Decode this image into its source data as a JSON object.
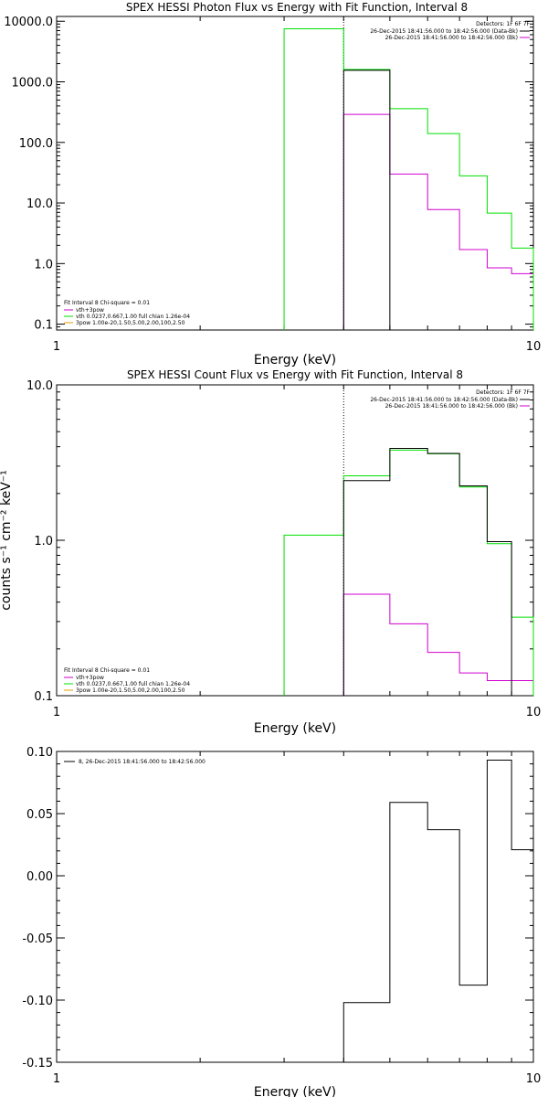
{
  "colors": {
    "black": "#000000",
    "green": "#00e000",
    "magenta": "#d000d0",
    "orange": "#e0a000",
    "background": "#ffffff"
  },
  "chart_data": [
    {
      "type": "line",
      "title": "SPEX HESSI Photon Flux vs Energy with Fit Function, Interval 8",
      "xlabel": "Energy (keV)",
      "ylabel": "",
      "xscale": "log",
      "yscale": "log",
      "xlim": [
        1,
        10
      ],
      "ylim": [
        0.08,
        12000
      ],
      "x_ticks": [
        1,
        10
      ],
      "x_tick_labels": [
        "1",
        "10"
      ],
      "y_ticks": [
        0.1,
        1,
        10,
        100,
        1000,
        10000
      ],
      "y_tick_labels": [
        "0.1",
        "1.0",
        "10.0",
        "100.0",
        "1000.0",
        "10000.0"
      ],
      "vline_x": 4.0,
      "bin_edges": [
        3.0,
        4.0,
        5.0,
        6.0,
        7.0,
        8.0,
        9.0,
        10.0
      ],
      "series": [
        {
          "name": "vth+3pow",
          "color": "magenta",
          "bin_edges": [
            4.0,
            5.0,
            6.0,
            7.0,
            8.0,
            9.0,
            10.0
          ],
          "values": [
            290,
            30,
            7.8,
            1.7,
            0.85,
            0.68
          ]
        },
        {
          "name": "vth 0.0237,0.667,1.00  full chian 1.26e-04",
          "color": "green",
          "bin_edges": [
            3.0,
            4.0,
            5.0,
            6.0,
            7.0,
            8.0,
            9.0,
            10.0
          ],
          "values": [
            7500,
            1600,
            360,
            140,
            28,
            6.8,
            1.8
          ]
        },
        {
          "name": "",
          "color": "black",
          "bin_edges": [
            4.0,
            5.0
          ],
          "values": [
            1550
          ]
        }
      ],
      "legend_header": "Detectors: 1F 6F 7F",
      "legend_time": [
        {
          "text": "26-Dec-2015 18:41:56.000 to 18:42:56.000 (Data-Bk)",
          "color": "black"
        },
        {
          "text": "26-Dec-2015 18:41:56.000 to 18:42:56.000 (Bk)",
          "color": "magenta"
        }
      ],
      "legend_fit": [
        {
          "text": "Fit Interval 8   Chi-square = 0.01",
          "color": "black"
        },
        {
          "text": "vth+3pow",
          "color": "magenta"
        },
        {
          "text": "vth 0.0237,0.667,1.00  full chian 1.26e-04",
          "color": "green"
        },
        {
          "text": "3pow 1.00e-20,1.50,5.00,2.00,100,2.50",
          "color": "orange"
        }
      ]
    },
    {
      "type": "line",
      "title": "SPEX HESSI Count Flux vs Energy with Fit Function, Interval 8",
      "xlabel": "Energy (keV)",
      "ylabel": "counts s⁻¹ cm⁻² keV⁻¹",
      "xscale": "log",
      "yscale": "log",
      "xlim": [
        1,
        10
      ],
      "ylim": [
        0.1,
        10
      ],
      "x_ticks": [
        1,
        10
      ],
      "x_tick_labels": [
        "1",
        "10"
      ],
      "y_ticks": [
        0.1,
        1,
        10
      ],
      "y_tick_labels": [
        "0.1",
        "1.0",
        "10.0"
      ],
      "vline_x": 4.0,
      "bin_edges": [
        3.0,
        4.0,
        5.0,
        6.0,
        7.0,
        8.0,
        9.0,
        10.0
      ],
      "series": [
        {
          "name": "vth+3pow",
          "color": "magenta",
          "bin_edges": [
            4.0,
            5.0,
            6.0,
            7.0,
            8.0,
            9.0,
            10.0
          ],
          "values": [
            0.45,
            0.29,
            0.19,
            0.14,
            0.125,
            0.125
          ]
        },
        {
          "name": "vth 0.0237,0.667,1.00  full chian 1.26e-04",
          "color": "green",
          "bin_edges": [
            3.0,
            4.0,
            5.0,
            6.0,
            7.0,
            8.0,
            9.0,
            10.0
          ],
          "values": [
            1.08,
            2.6,
            3.8,
            3.6,
            2.2,
            0.95,
            0.32
          ]
        },
        {
          "name": "",
          "color": "black",
          "bin_edges": [
            4.0,
            5.0,
            6.0,
            7.0,
            8.0,
            9.0
          ],
          "values": [
            2.42,
            3.9,
            3.62,
            2.24,
            0.98
          ]
        }
      ],
      "legend_header": "Detectors: 1F 6F 7F",
      "legend_time": [
        {
          "text": "26-Dec-2015 18:41:56.000 to 18:42:56.000 (Data-Bk)",
          "color": "black"
        },
        {
          "text": "26-Dec-2015 18:41:56.000 to 18:42:56.000 (Bk)",
          "color": "magenta"
        }
      ],
      "legend_fit": [
        {
          "text": "Fit Interval 8   Chi-square = 0.01",
          "color": "black"
        },
        {
          "text": "vth+3pow",
          "color": "magenta"
        },
        {
          "text": "vth 0.0237,0.667,1.00  full chian 1.26e-04",
          "color": "green"
        },
        {
          "text": "3pow 1.00e-20,1.50,5.00,2.00,100,2.50",
          "color": "orange"
        }
      ]
    },
    {
      "type": "line",
      "title": "",
      "xlabel": "Energy (keV)",
      "ylabel": "",
      "xscale": "log",
      "yscale": "linear",
      "xlim": [
        1,
        10
      ],
      "ylim": [
        -0.15,
        0.1
      ],
      "x_ticks": [
        1,
        10
      ],
      "x_tick_labels": [
        "1",
        "10"
      ],
      "y_ticks": [
        0.1,
        0.05,
        0.0,
        -0.05,
        -0.1,
        -0.15
      ],
      "y_tick_labels": [
        "0.10",
        "0.05",
        "0.00",
        "-0.05",
        "-0.10",
        "-0.15"
      ],
      "series": [
        {
          "name": "8, 26-Dec-2015 18:41:56.000 to 18:42:56.000",
          "color": "black",
          "bin_edges": [
            4.0,
            5.0,
            6.0,
            7.0,
            8.0,
            9.0,
            10.0
          ],
          "values": [
            -0.102,
            0.059,
            0.037,
            -0.088,
            0.093,
            0.021
          ]
        }
      ],
      "legend_line": "8, 26-Dec-2015 18:41:56.000 to 18:42:56.000"
    }
  ]
}
